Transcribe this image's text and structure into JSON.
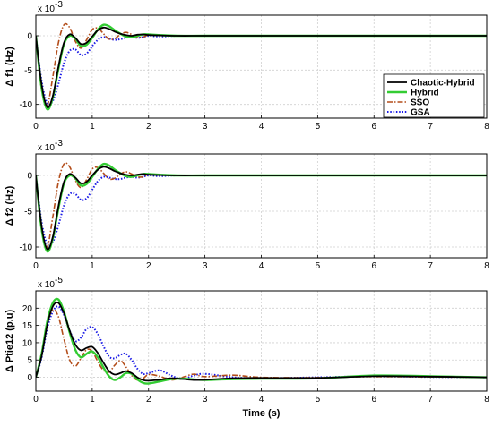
{
  "chart_data": [
    {
      "type": "line",
      "ylabel": "Δ f1 (Hz)",
      "exponent_base": "x 10",
      "exponent_power": "-3",
      "xlim": [
        0,
        8
      ],
      "ylim": [
        -12,
        3
      ],
      "xticks": [
        "0",
        "1",
        "2",
        "3",
        "4",
        "5",
        "6",
        "7",
        "8"
      ],
      "yticks": [
        {
          "v": 0,
          "t": "0"
        },
        {
          "v": -5,
          "t": "-5"
        },
        {
          "v": -10,
          "t": "-10"
        }
      ],
      "grid": true,
      "legend_placement": "middle-right",
      "series": [
        {
          "name": "Chaotic-Hybrid",
          "x": [
            0,
            0.1,
            0.2,
            0.3,
            0.4,
            0.5,
            0.6,
            0.7,
            0.8,
            0.9,
            1.0,
            1.1,
            1.2,
            1.3,
            1.4,
            1.5,
            1.6,
            1.7,
            1.8,
            1.9,
            2.0,
            2.2,
            2.5,
            3.0,
            4.0,
            8.0
          ],
          "y": [
            0,
            -7,
            -10.4,
            -8.8,
            -4.5,
            -1.0,
            0.2,
            -0.3,
            -1.2,
            -1.0,
            -0.1,
            0.8,
            1.2,
            1.0,
            0.6,
            0.3,
            0.1,
            0.0,
            0.15,
            0.2,
            0.1,
            0.05,
            0.0,
            0.0,
            0.0,
            0.0
          ]
        },
        {
          "name": "Hybrid",
          "x": [
            0,
            0.1,
            0.2,
            0.3,
            0.4,
            0.5,
            0.6,
            0.7,
            0.8,
            0.9,
            1.0,
            1.1,
            1.2,
            1.3,
            1.4,
            1.5,
            1.6,
            1.7,
            1.8,
            1.9,
            2.0,
            2.2,
            2.5,
            3.0,
            4.0,
            8.0
          ],
          "y": [
            0,
            -7.5,
            -10.7,
            -9.0,
            -4.8,
            -1.2,
            0.0,
            -0.4,
            -1.5,
            -1.3,
            -0.3,
            0.9,
            1.6,
            1.4,
            0.8,
            0.3,
            -0.1,
            -0.2,
            0.0,
            0.2,
            0.2,
            0.1,
            0.0,
            0.0,
            0.0,
            0.0
          ]
        },
        {
          "name": "SSO",
          "x": [
            0,
            0.1,
            0.2,
            0.3,
            0.4,
            0.5,
            0.6,
            0.7,
            0.8,
            0.9,
            1.0,
            1.1,
            1.2,
            1.3,
            1.4,
            1.5,
            1.6,
            1.7,
            1.8,
            1.9,
            2.0,
            2.2,
            2.5,
            3.0,
            4.0,
            8.0
          ],
          "y": [
            0,
            -7.8,
            -10.2,
            -6.0,
            -1.0,
            1.6,
            1.2,
            -0.8,
            -1.8,
            -0.6,
            0.9,
            1.1,
            0.3,
            -0.5,
            -0.4,
            0.2,
            0.5,
            0.2,
            -0.2,
            -0.2,
            0.1,
            0.1,
            0.0,
            0.0,
            0.0,
            0.0
          ]
        },
        {
          "name": "GSA",
          "x": [
            0,
            0.1,
            0.2,
            0.3,
            0.4,
            0.5,
            0.6,
            0.7,
            0.8,
            0.9,
            1.0,
            1.1,
            1.2,
            1.3,
            1.4,
            1.5,
            1.6,
            1.7,
            1.8,
            1.9,
            2.0,
            2.2,
            2.5,
            3.0,
            4.0,
            8.0
          ],
          "y": [
            0,
            -6.5,
            -9.8,
            -9.5,
            -7.0,
            -4.0,
            -2.2,
            -2.0,
            -2.8,
            -2.6,
            -1.5,
            -0.6,
            -0.2,
            -0.4,
            -0.6,
            -0.5,
            -0.3,
            -0.2,
            -0.3,
            -0.2,
            0.0,
            -0.1,
            0.0,
            0.0,
            0.0,
            0.0
          ]
        }
      ]
    },
    {
      "type": "line",
      "ylabel": "Δ f2 (Hz)",
      "exponent_base": "x 10",
      "exponent_power": "-3",
      "xlim": [
        0,
        8
      ],
      "ylim": [
        -11.5,
        3
      ],
      "xticks": [
        "0",
        "1",
        "2",
        "3",
        "4",
        "5",
        "6",
        "7",
        "8"
      ],
      "yticks": [
        {
          "v": 0,
          "t": "0"
        },
        {
          "v": -5,
          "t": "-5"
        },
        {
          "v": -10,
          "t": "-10"
        }
      ],
      "grid": true,
      "series": [
        {
          "name": "Chaotic-Hybrid",
          "x": [
            0,
            0.1,
            0.2,
            0.3,
            0.4,
            0.5,
            0.6,
            0.7,
            0.8,
            0.9,
            1.0,
            1.1,
            1.2,
            1.3,
            1.4,
            1.5,
            1.6,
            1.7,
            1.8,
            1.9,
            2.0,
            2.2,
            2.5,
            3.0,
            4.0,
            8.0
          ],
          "y": [
            0,
            -7,
            -10.3,
            -8.6,
            -4.3,
            -0.9,
            0.2,
            -0.3,
            -1.1,
            -0.9,
            0.0,
            0.8,
            1.2,
            1.0,
            0.6,
            0.3,
            0.1,
            0.0,
            0.1,
            0.2,
            0.1,
            0.05,
            0.0,
            0.0,
            0.0,
            0.0
          ]
        },
        {
          "name": "Hybrid",
          "x": [
            0,
            0.1,
            0.2,
            0.3,
            0.4,
            0.5,
            0.6,
            0.7,
            0.8,
            0.9,
            1.0,
            1.1,
            1.2,
            1.3,
            1.4,
            1.5,
            1.6,
            1.7,
            1.8,
            1.9,
            2.0,
            2.2,
            2.5,
            3.0,
            4.0,
            8.0
          ],
          "y": [
            0,
            -7.4,
            -10.6,
            -8.8,
            -4.6,
            -1.1,
            0.0,
            -0.4,
            -1.4,
            -1.2,
            -0.2,
            0.9,
            1.6,
            1.4,
            0.8,
            0.3,
            -0.1,
            -0.2,
            0.0,
            0.2,
            0.2,
            0.1,
            0.0,
            0.0,
            0.0,
            0.0
          ]
        },
        {
          "name": "SSO",
          "x": [
            0,
            0.1,
            0.2,
            0.3,
            0.4,
            0.5,
            0.6,
            0.7,
            0.8,
            0.9,
            1.0,
            1.1,
            1.2,
            1.3,
            1.4,
            1.5,
            1.6,
            1.7,
            1.8,
            1.9,
            2.0,
            2.2,
            2.5,
            3.0,
            4.0,
            8.0
          ],
          "y": [
            0,
            -7.6,
            -10.0,
            -5.8,
            -0.9,
            1.6,
            1.2,
            -0.7,
            -1.7,
            -0.6,
            0.9,
            1.1,
            0.3,
            -0.5,
            -0.4,
            0.2,
            0.5,
            0.2,
            -0.2,
            -0.2,
            0.1,
            0.1,
            0.0,
            0.0,
            0.0,
            0.0
          ]
        },
        {
          "name": "GSA",
          "x": [
            0,
            0.1,
            0.2,
            0.3,
            0.4,
            0.5,
            0.6,
            0.7,
            0.8,
            0.9,
            1.0,
            1.1,
            1.2,
            1.3,
            1.4,
            1.5,
            1.6,
            1.7,
            1.8,
            1.9,
            2.0,
            2.2,
            2.5,
            3.0,
            4.0,
            8.0
          ],
          "y": [
            0,
            -6.4,
            -9.6,
            -9.3,
            -7.0,
            -4.2,
            -2.6,
            -2.6,
            -3.4,
            -3.2,
            -2.0,
            -0.8,
            -0.2,
            -0.3,
            -0.5,
            -0.5,
            -0.3,
            -0.2,
            -0.3,
            -0.2,
            0.0,
            -0.1,
            0.0,
            0.0,
            0.0,
            0.0
          ]
        }
      ]
    },
    {
      "type": "line",
      "ylabel": "Δ Ptie12 (p.u)",
      "xlabel": "Time (s)",
      "exponent_base": "x 10",
      "exponent_power": "-5",
      "xlim": [
        0,
        8
      ],
      "ylim": [
        -4,
        25
      ],
      "xticks": [
        "0",
        "1",
        "2",
        "3",
        "4",
        "5",
        "6",
        "7",
        "8"
      ],
      "yticks": [
        {
          "v": 20,
          "t": "20"
        },
        {
          "v": 15,
          "t": "15"
        },
        {
          "v": 10,
          "t": "10"
        },
        {
          "v": 5,
          "t": "5"
        },
        {
          "v": 0,
          "t": "0"
        }
      ],
      "grid": true,
      "series": [
        {
          "name": "Chaotic-Hybrid",
          "x": [
            0,
            0.1,
            0.2,
            0.3,
            0.4,
            0.5,
            0.6,
            0.7,
            0.8,
            0.9,
            1.0,
            1.1,
            1.2,
            1.3,
            1.4,
            1.5,
            1.6,
            1.7,
            1.8,
            1.9,
            2.0,
            2.2,
            2.4,
            2.6,
            2.8,
            3.0,
            3.5,
            4.0,
            5.0,
            6.0,
            7.0,
            8.0
          ],
          "y": [
            0,
            6,
            15,
            20.5,
            21.5,
            18.5,
            13.5,
            9.5,
            7.8,
            8.5,
            8.8,
            7.0,
            4.2,
            1.8,
            0.8,
            1.2,
            1.8,
            1.2,
            0.0,
            -0.8,
            -1.0,
            -0.7,
            -0.3,
            -0.5,
            -0.8,
            -0.7,
            -0.3,
            -0.2,
            -0.2,
            0.3,
            0.2,
            0.0
          ]
        },
        {
          "name": "Hybrid",
          "x": [
            0,
            0.1,
            0.2,
            0.3,
            0.4,
            0.5,
            0.6,
            0.7,
            0.8,
            0.9,
            1.0,
            1.1,
            1.2,
            1.3,
            1.4,
            1.5,
            1.6,
            1.7,
            1.8,
            1.9,
            2.0,
            2.2,
            2.4,
            2.6,
            2.8,
            3.0,
            3.5,
            4.0,
            5.0,
            6.0,
            7.0,
            8.0
          ],
          "y": [
            0,
            6.5,
            16,
            21.5,
            22.5,
            19.0,
            13.0,
            8.0,
            5.8,
            6.8,
            7.5,
            5.8,
            2.8,
            0.3,
            -0.8,
            0.0,
            1.2,
            1.0,
            -0.6,
            -1.6,
            -1.8,
            -1.2,
            -0.5,
            -0.4,
            -0.6,
            -0.8,
            -0.5,
            -0.4,
            -0.3,
            0.5,
            0.3,
            0.0
          ]
        },
        {
          "name": "SSO",
          "x": [
            0,
            0.1,
            0.2,
            0.3,
            0.4,
            0.5,
            0.6,
            0.7,
            0.8,
            0.9,
            1.0,
            1.1,
            1.2,
            1.3,
            1.4,
            1.5,
            1.6,
            1.7,
            1.8,
            1.9,
            2.0,
            2.2,
            2.4,
            2.6,
            2.8,
            3.0,
            3.5,
            4.0,
            5.0,
            6.0,
            7.0,
            8.0
          ],
          "y": [
            0,
            7,
            15.5,
            19.5,
            17.5,
            11.0,
            5.0,
            3.2,
            5.5,
            8.0,
            7.5,
            4.5,
            2.0,
            1.5,
            3.5,
            4.8,
            3.0,
            0.5,
            -0.8,
            -0.4,
            0.8,
            0.3,
            -0.8,
            0.0,
            0.9,
            0.2,
            0.6,
            0.0,
            -0.1,
            0.2,
            0.1,
            0.0
          ]
        },
        {
          "name": "GSA",
          "x": [
            0,
            0.1,
            0.2,
            0.3,
            0.4,
            0.5,
            0.6,
            0.7,
            0.8,
            0.9,
            1.0,
            1.1,
            1.2,
            1.3,
            1.4,
            1.5,
            1.6,
            1.7,
            1.8,
            1.9,
            2.0,
            2.2,
            2.4,
            2.6,
            2.8,
            3.0,
            3.5,
            4.0,
            5.0,
            6.0,
            7.0,
            8.0
          ],
          "y": [
            0,
            5.5,
            14,
            19.0,
            20.5,
            18.0,
            13.5,
            10.5,
            11.5,
            14.0,
            14.5,
            12.5,
            9.0,
            6.0,
            5.5,
            6.5,
            6.8,
            5.0,
            2.5,
            1.0,
            1.2,
            2.0,
            0.5,
            -0.5,
            0.5,
            1.0,
            0.0,
            -0.3,
            0.0,
            0.3,
            0.1,
            0.0
          ]
        }
      ]
    }
  ],
  "styles": {
    "Chaotic-Hybrid": {
      "color": "#000000",
      "dash": "",
      "width": 1.8
    },
    "Hybrid": {
      "color": "#33cc33",
      "dash": "",
      "width": 2.4
    },
    "SSO": {
      "color": "#b34d1a",
      "dash": "6,2,1.5,2",
      "width": 1.6
    },
    "GSA": {
      "color": "#1a1ae6",
      "dash": "1.5,1.8",
      "width": 2.0
    }
  }
}
